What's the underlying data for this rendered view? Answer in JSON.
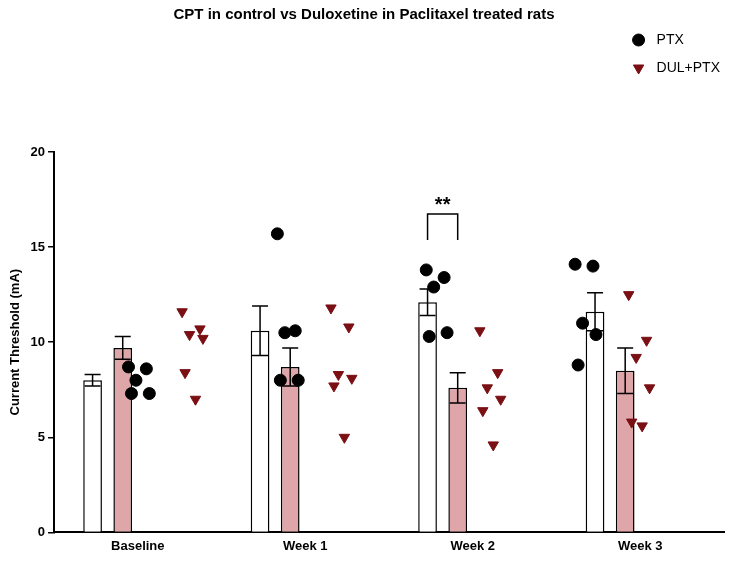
{
  "chart_data": {
    "type": "bar",
    "title": "CPT in control vs Duloxetine in Paclitaxel treated rats",
    "y_label": "Current Threshold (mA)",
    "categories": [
      "Baseline",
      "Week 1",
      "Week 2",
      "Week 3"
    ],
    "series": [
      {
        "name": "PTX",
        "color": "#000000",
        "marker": "circle",
        "values": [
          8.0,
          10.6,
          12.1,
          11.6
        ],
        "errors": [
          0.3,
          1.3,
          0.7,
          1.0
        ],
        "points": [
          [
            8.7,
            8.6,
            8.0,
            7.3,
            7.3
          ],
          [
            15.7,
            10.6,
            10.5,
            8.0,
            8.0
          ],
          [
            13.8,
            13.4,
            12.9,
            10.5,
            10.3
          ],
          [
            14.1,
            14.0,
            11.0,
            10.4,
            8.8
          ]
        ]
      },
      {
        "name": "DUL+PTX",
        "color": "#7a0f14",
        "marker": "triangle_down",
        "values": [
          9.7,
          8.7,
          7.6,
          8.5
        ],
        "errors": [
          0.6,
          1.0,
          0.8,
          1.2
        ],
        "points": [
          [
            11.6,
            10.7,
            10.4,
            10.2,
            8.4,
            7.0
          ],
          [
            11.8,
            10.8,
            8.3,
            8.1,
            7.7,
            5.0
          ],
          [
            10.6,
            8.4,
            7.6,
            7.0,
            6.4,
            4.6
          ],
          [
            12.5,
            10.1,
            9.2,
            7.6,
            5.8,
            5.6
          ]
        ]
      }
    ],
    "ylim": [
      0,
      20
    ],
    "yticks": [
      0,
      5,
      10,
      15,
      20
    ],
    "grid": false,
    "legend": "upper right",
    "annotations": [
      {
        "text": "**",
        "category": "Week 2"
      }
    ]
  }
}
